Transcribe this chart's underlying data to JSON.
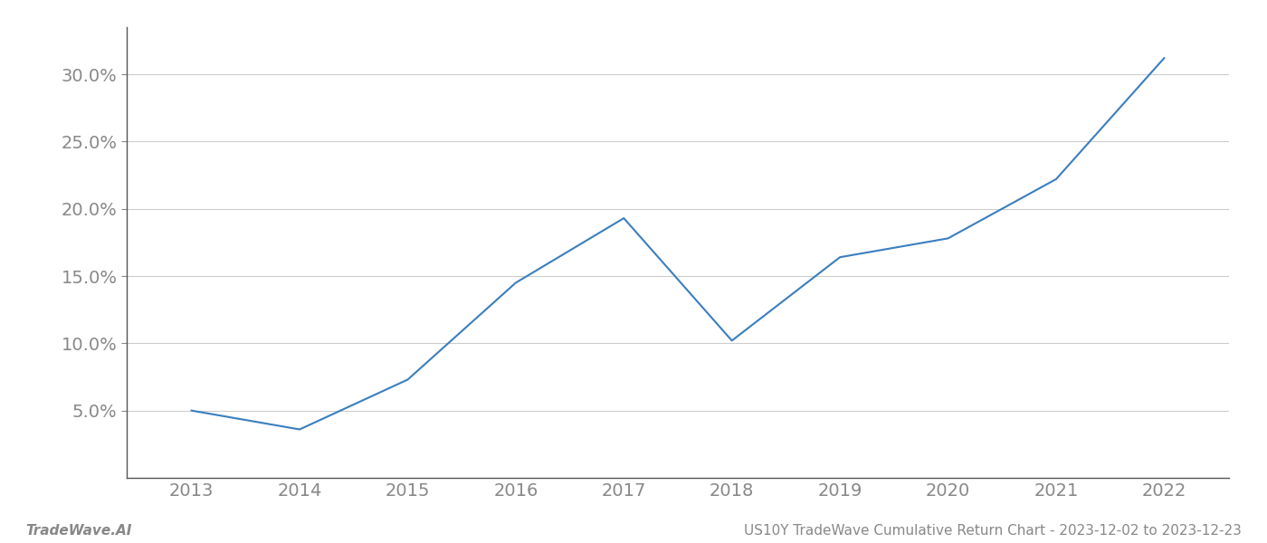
{
  "x_years": [
    2013,
    2014,
    2015,
    2016,
    2017,
    2018,
    2019,
    2020,
    2021,
    2022
  ],
  "y_values": [
    0.05,
    0.036,
    0.073,
    0.145,
    0.193,
    0.102,
    0.164,
    0.178,
    0.222,
    0.312
  ],
  "line_color": "#3a7ebf",
  "line_width": 1.5,
  "background_color": "#ffffff",
  "grid_color": "#cccccc",
  "ylabel_ticks": [
    0.05,
    0.1,
    0.15,
    0.2,
    0.25,
    0.3
  ],
  "xlabel_ticks": [
    2013,
    2014,
    2015,
    2016,
    2017,
    2018,
    2019,
    2020,
    2021,
    2022
  ],
  "ylim": [
    0.0,
    0.335
  ],
  "xlim": [
    2012.4,
    2022.6
  ],
  "footer_left": "TradeWave.AI",
  "footer_right": "US10Y TradeWave Cumulative Return Chart - 2023-12-02 to 2023-12-23",
  "tick_color": "#888888",
  "tick_fontsize": 14,
  "footer_fontsize": 11,
  "spine_color": "#555555"
}
